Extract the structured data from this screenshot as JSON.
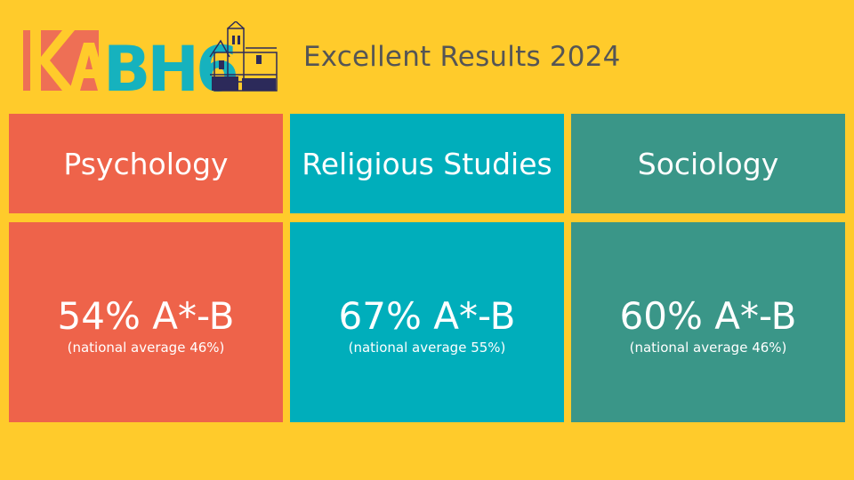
{
  "logo": {
    "text": "KABH6"
  },
  "title": "Excellent Results 2024",
  "subjects": [
    {
      "name": "Psychology",
      "result": "54% A*-B",
      "note": "(national average 46%)",
      "color": "#EE634A"
    },
    {
      "name": "Religious Studies",
      "result": "67% A*-B",
      "note": "(national average 55%)",
      "color": "#00AEBB"
    },
    {
      "name": "Sociology",
      "result": "60% A*-B",
      "note": "(national average 46%)",
      "color": "#3A9688"
    }
  ]
}
